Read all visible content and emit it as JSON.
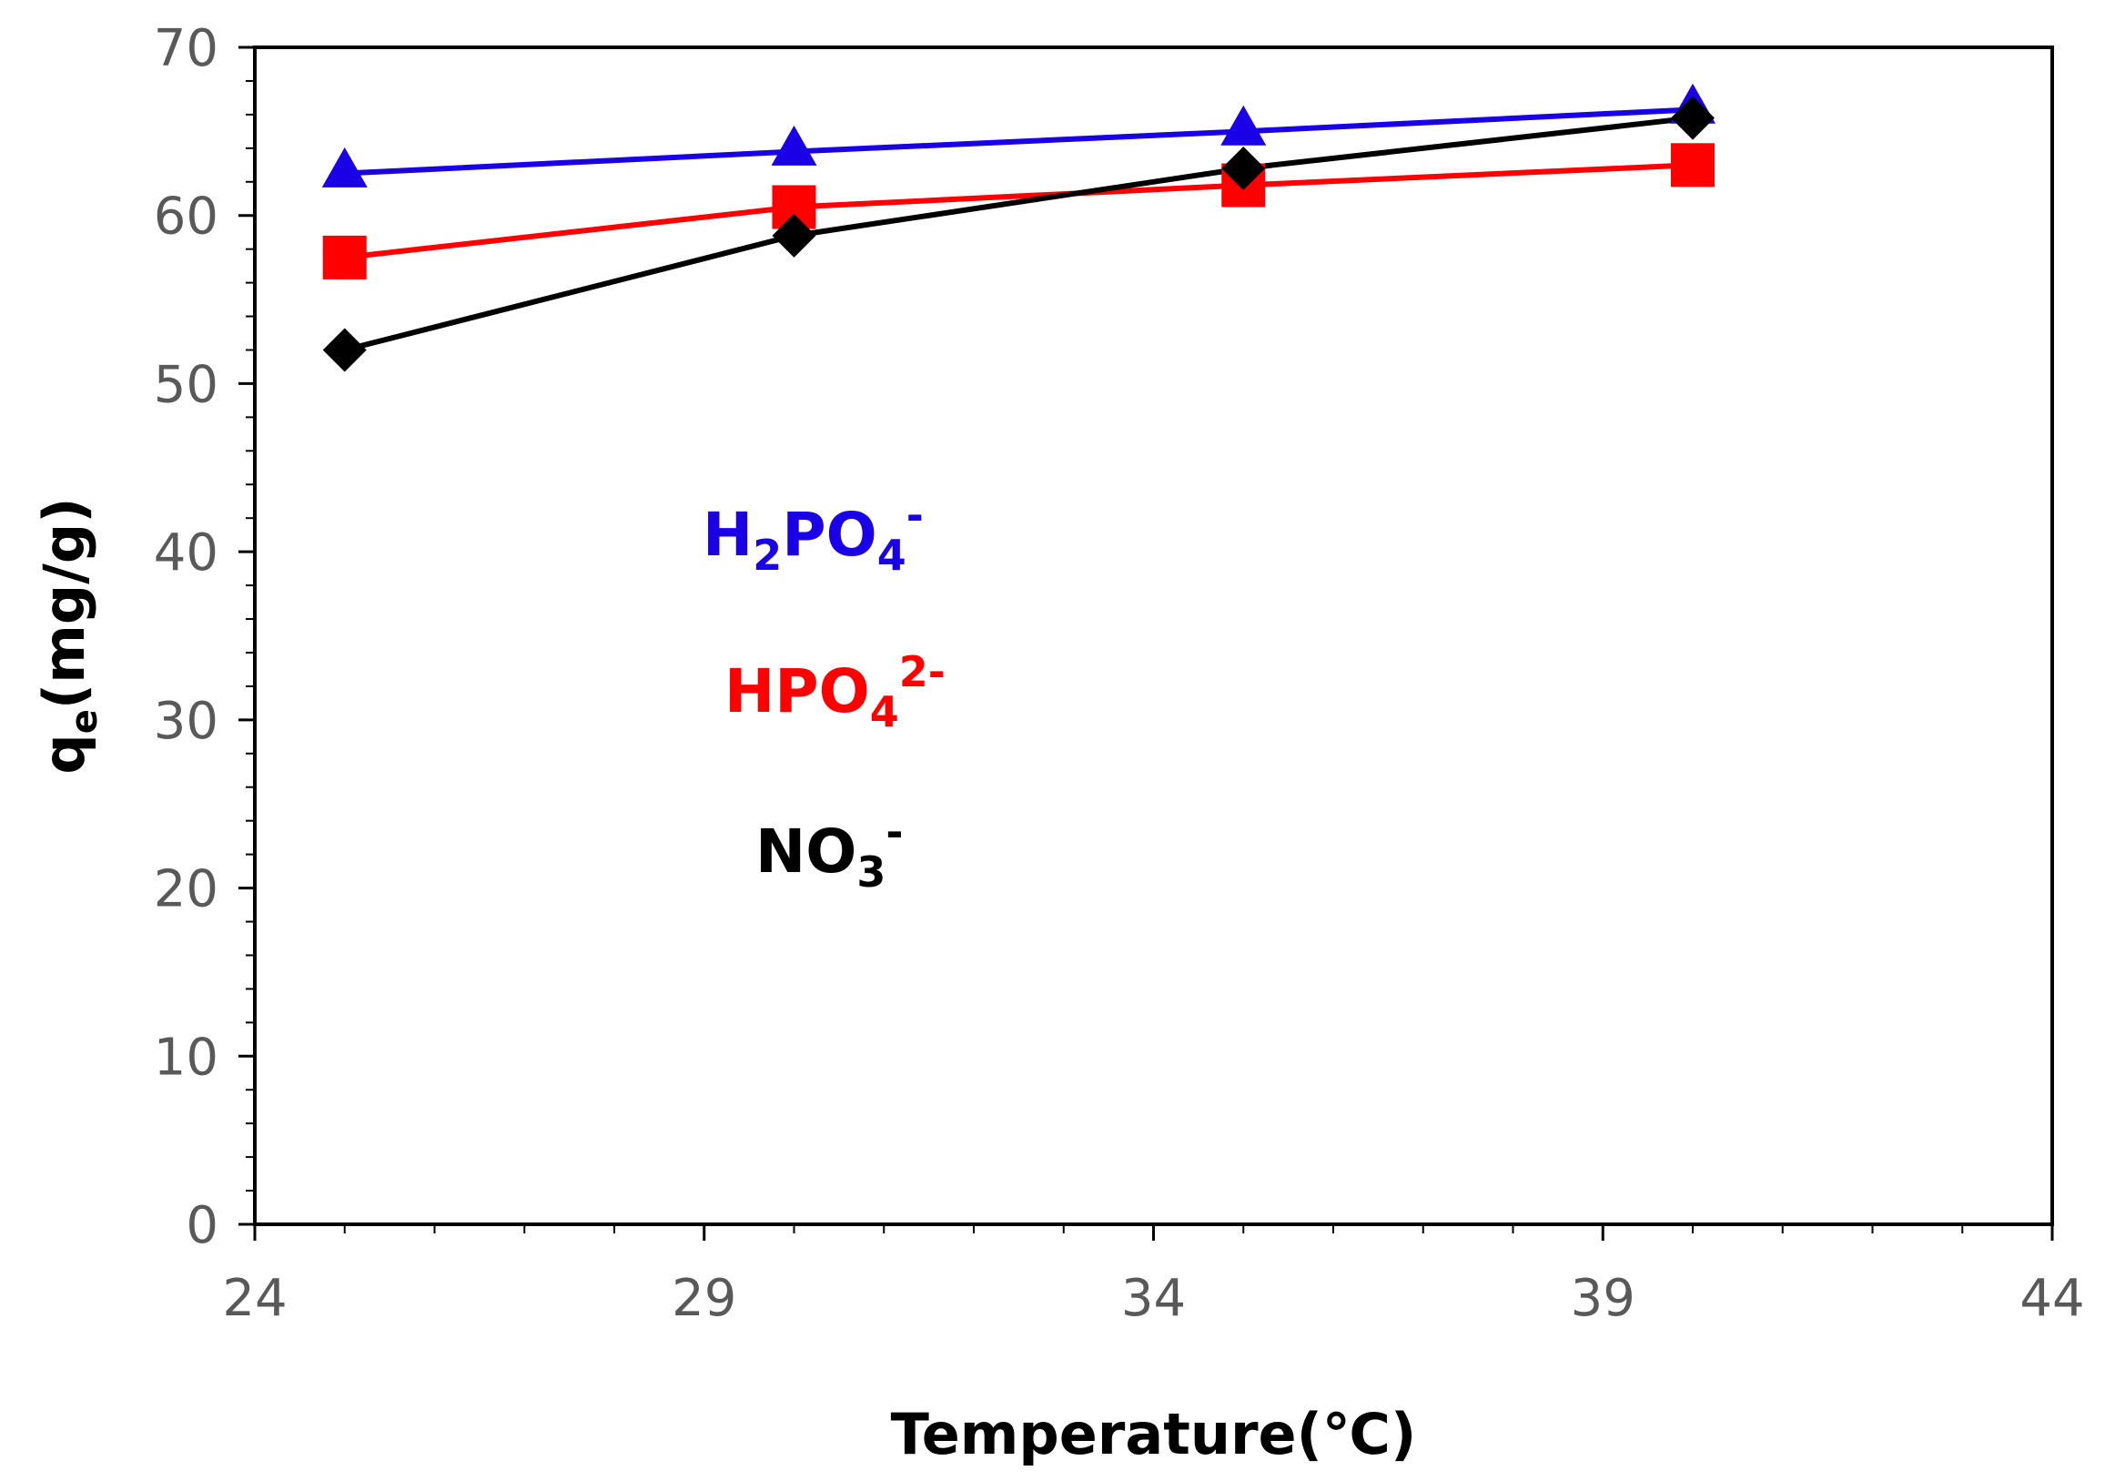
{
  "chart_data": {
    "type": "line",
    "xlabel": "Temperature(℃)",
    "ylabel_main": "q",
    "ylabel_sub": "e",
    "ylabel_rest": "(mg/g)",
    "xlim": [
      24,
      44
    ],
    "ylim": [
      0,
      70
    ],
    "xticks": [
      24,
      29,
      34,
      39,
      44
    ],
    "yticks": [
      0,
      10,
      20,
      30,
      40,
      50,
      60,
      70
    ],
    "grid": false,
    "series": [
      {
        "name": "H2PO4-",
        "label_base": "H",
        "label_sub1": "2",
        "label_mid": "PO",
        "label_sub2": "4",
        "label_sup": "-",
        "color": "#1a00e6",
        "marker": "triangle",
        "x": [
          25,
          30,
          35,
          40
        ],
        "y": [
          62.5,
          63.8,
          65.0,
          66.3
        ]
      },
      {
        "name": "HPO42-",
        "label_base": "HPO",
        "label_sub1": "4",
        "label_sup": "2-",
        "color": "#ff0000",
        "marker": "square",
        "x": [
          25,
          30,
          35,
          40
        ],
        "y": [
          57.5,
          60.5,
          61.8,
          63.0
        ]
      },
      {
        "name": "NO3-",
        "label_base": "NO",
        "label_sub1": "3",
        "label_sup": "-",
        "color": "#000000",
        "marker": "diamond",
        "x": [
          25,
          30,
          35,
          40
        ],
        "y": [
          52.0,
          58.8,
          62.8,
          65.8
        ]
      }
    ]
  }
}
